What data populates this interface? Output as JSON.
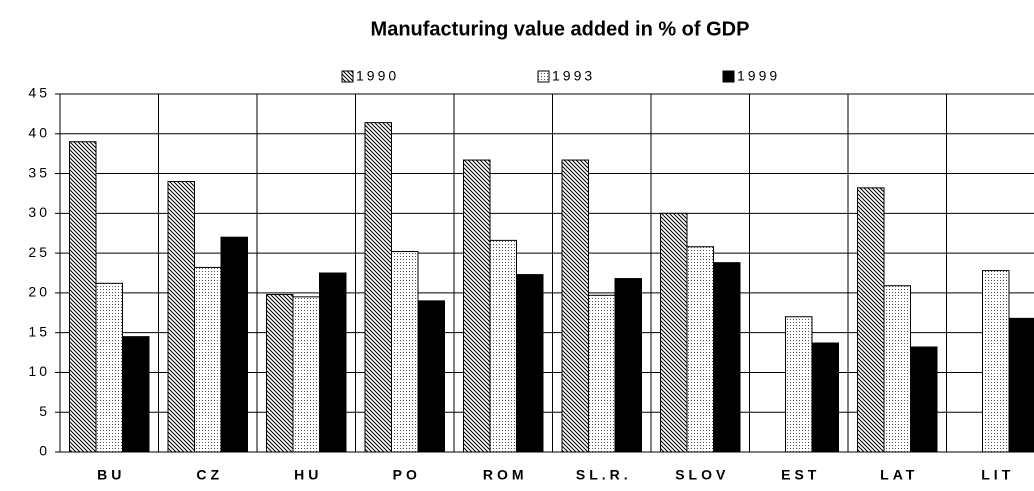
{
  "chart_data": {
    "type": "bar",
    "title": "Manufacturing value added in % of GDP",
    "categories": [
      "BU",
      "CZ",
      "HU",
      "PO",
      "ROM",
      "SL.R.",
      "SLOV",
      "EST",
      "LAT",
      "LIT"
    ],
    "series": [
      {
        "name": "1990",
        "color": "hatch",
        "values": [
          39,
          34,
          19.8,
          41.4,
          36.7,
          36.7,
          30,
          null,
          33.2,
          null
        ]
      },
      {
        "name": "1993",
        "color": "dots",
        "values": [
          21.2,
          23.2,
          19.5,
          25.2,
          26.6,
          19.7,
          25.8,
          17,
          20.9,
          22.8
        ]
      },
      {
        "name": "1999",
        "color": "#000000",
        "values": [
          14.5,
          27,
          22.5,
          19,
          22.3,
          21.8,
          23.8,
          13.7,
          13.2,
          16.8
        ]
      }
    ],
    "ylim": [
      0,
      45
    ],
    "yticks": [
      0,
      5,
      10,
      15,
      20,
      25,
      30,
      35,
      40,
      45
    ],
    "grid": true
  }
}
